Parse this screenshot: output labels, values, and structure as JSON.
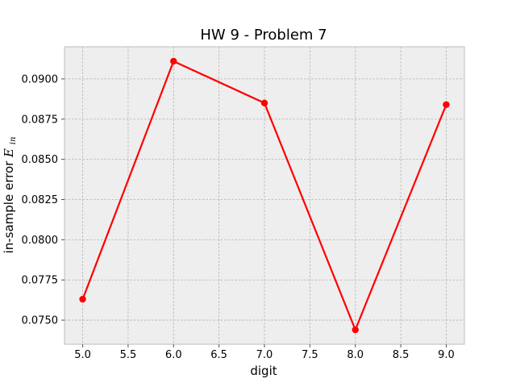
{
  "chart_data": {
    "type": "line",
    "title": "HW 9 - Problem 7",
    "xlabel": "digit",
    "ylabel_text": "in-sample error ",
    "ylabel_symbol": "E",
    "ylabel_subscript": "in",
    "xlim": [
      4.8,
      9.2
    ],
    "ylim": [
      0.0735,
      0.092
    ],
    "xticks": [
      5.0,
      5.5,
      6.0,
      6.5,
      7.0,
      7.5,
      8.0,
      8.5,
      9.0
    ],
    "xtick_labels": [
      "5.0",
      "5.5",
      "6.0",
      "6.5",
      "7.0",
      "7.5",
      "8.0",
      "8.5",
      "9.0"
    ],
    "yticks": [
      0.075,
      0.0775,
      0.08,
      0.0825,
      0.085,
      0.0875,
      0.09
    ],
    "ytick_labels": [
      "0.0750",
      "0.0775",
      "0.0800",
      "0.0825",
      "0.0850",
      "0.0875",
      "0.0900"
    ],
    "grid": true,
    "background": "#eeeeee",
    "series": [
      {
        "color": "#ff0000",
        "marker": "circle",
        "x": [
          5,
          6,
          7,
          8,
          9
        ],
        "y": [
          0.0763,
          0.0911,
          0.0885,
          0.0744,
          0.0884
        ]
      }
    ]
  }
}
